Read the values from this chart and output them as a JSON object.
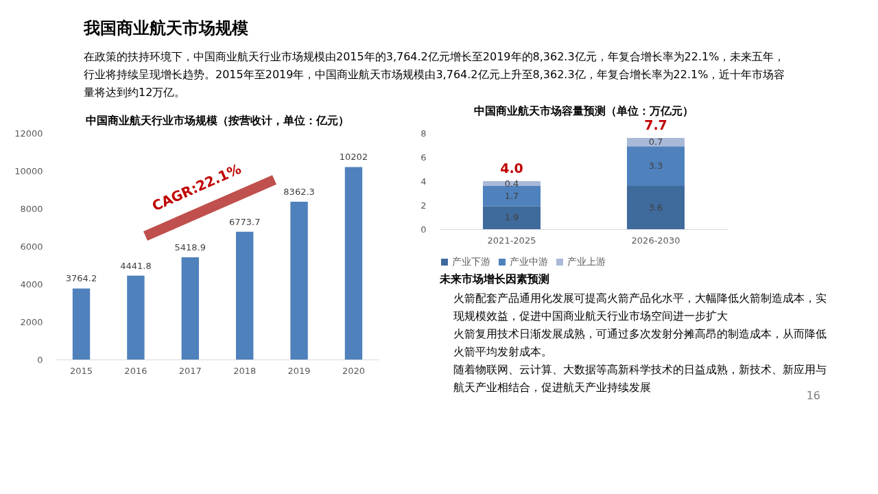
{
  "chart_data": [
    {
      "type": "other",
      "title": "我国商业航天市场规模",
      "annotations": [
        "在政策的扶持环境下，中国商业航天行业市场规模由2015年的3,764.2亿元增长至2019年的8,362.3亿元，年复合增长率为22.1%，未来五年，行业将持续呈现增长趋势。2015年至2019年，中国商业航天市场规模由3,764.2亿元上升至8,362.3亿，年复合增长率为22.1%，近十年市场容量将达到约12万亿。"
      ]
    },
    {
      "type": "bar",
      "title": "中国商业航天行业市场规模（按营收计，单位：亿元）",
      "categories": [
        "2015",
        "2016",
        "2017",
        "2018",
        "2019",
        "2020"
      ],
      "values": [
        3764.2,
        4441.8,
        5418.9,
        6773.7,
        8362.3,
        10202
      ],
      "color": "#4f81bd",
      "ylim": [
        0,
        12000
      ],
      "yticks": [
        0,
        2000,
        4000,
        6000,
        8000,
        10000,
        12000
      ],
      "data_labels": true,
      "annotations": [
        "CAGR:22.1%"
      ]
    },
    {
      "type": "bar",
      "title": "中国商业航天市场容量预测（单位：万亿元）",
      "categories": [
        "2021-2025",
        "2026-2030"
      ],
      "stacked": true,
      "series": [
        {
          "name": "产业下游",
          "color": "#3f6a9c",
          "values": [
            1.9,
            3.6
          ]
        },
        {
          "name": "产业中游",
          "color": "#4f81bd",
          "values": [
            1.7,
            3.3
          ]
        },
        {
          "name": "产业上游",
          "color": "#a9b9d8",
          "values": [
            0.4,
            0.7
          ]
        }
      ],
      "ylim": [
        0,
        8
      ],
      "yticks": [
        0,
        2,
        4,
        6,
        8
      ],
      "data_labels": true,
      "totals": [
        "4.0",
        "7.7"
      ],
      "legend": "bottom"
    },
    {
      "type": "other",
      "title": "未来市场增长因素预测",
      "annotations": [
        "火箭配套产品通用化发展可提高火箭产品化水平，大幅降低火箭制造成本，实现规模效益，促进中国商业航天行业市场空间进一步扩大",
        "火箭复用技术日渐发展成熟，可通过多次发射分摊高昂的制造成本，从而降低火箭平均发射成本。",
        "随着物联网、云计算、大数据等高新科学技术的日益成熟，新技术、新应用与航天产业相结合，促进航天产业持续发展",
        "16"
      ]
    }
  ]
}
